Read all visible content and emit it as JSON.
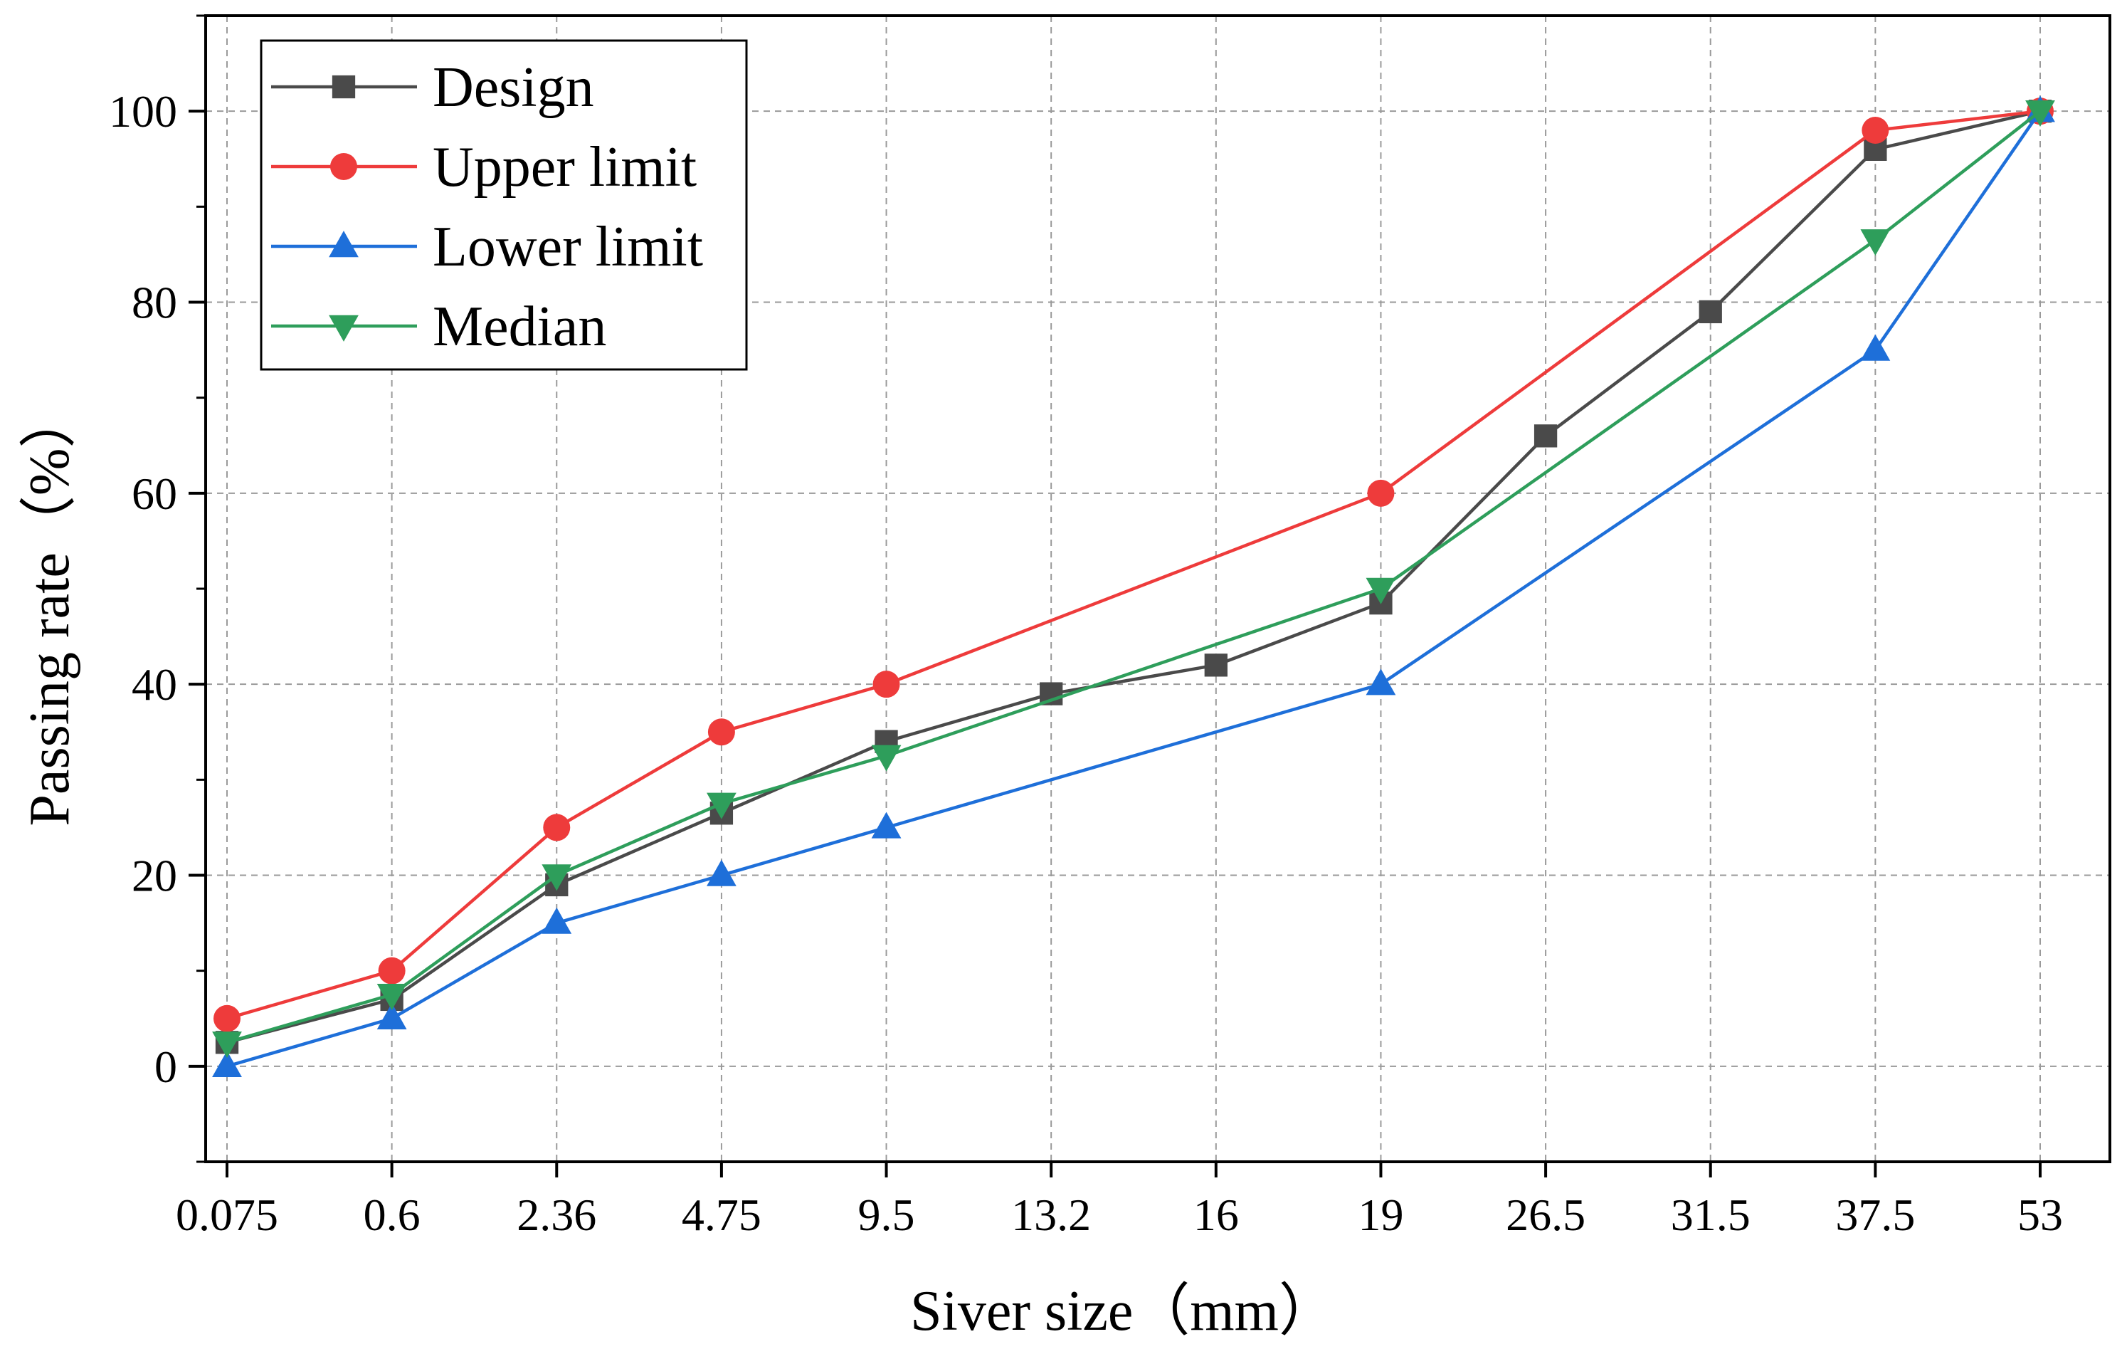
{
  "chart_data": {
    "type": "line",
    "title": "",
    "xlabel": "Siver size（mm）",
    "ylabel": "Passing rate（%）",
    "categories": [
      "0.075",
      "0.6",
      "2.36",
      "4.75",
      "9.5",
      "13.2",
      "16",
      "19",
      "26.5",
      "31.5",
      "37.5",
      "53"
    ],
    "yticks": [
      0,
      20,
      40,
      60,
      80,
      100
    ],
    "ylim": [
      -10,
      110
    ],
    "grid": true,
    "legend_position": "top-left",
    "series": [
      {
        "name": "Design",
        "color": "#4a4a4a",
        "marker": "square",
        "values": [
          2.5,
          7,
          19,
          26.5,
          34,
          39,
          42,
          48.5,
          66,
          79,
          96,
          100
        ]
      },
      {
        "name": "Upper limit",
        "color": "#ee3b3b",
        "marker": "circle",
        "values": [
          5,
          10,
          25,
          35,
          40,
          null,
          null,
          60,
          null,
          null,
          98,
          100
        ]
      },
      {
        "name": "Lower limit",
        "color": "#1e6fd9",
        "marker": "triangle-up",
        "values": [
          0,
          5,
          15,
          20,
          25,
          null,
          null,
          40,
          null,
          null,
          75,
          100
        ]
      },
      {
        "name": "Median",
        "color": "#2e9e5b",
        "marker": "triangle-down",
        "values": [
          2.5,
          7.5,
          20,
          27.5,
          32.5,
          null,
          null,
          50,
          null,
          null,
          86.5,
          100
        ]
      }
    ]
  }
}
